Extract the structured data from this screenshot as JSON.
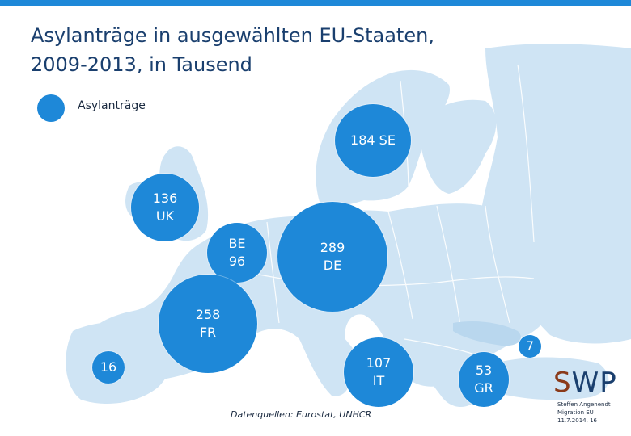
{
  "title": {
    "line1": "Asylanträge in ausgewählten EU-Staaten,",
    "line2": "2009-2013, in Tausend"
  },
  "legend": {
    "label": "Asylanträge"
  },
  "bubbles": [
    {
      "id": "se",
      "value": 184,
      "line1": "184 SE",
      "line2": ""
    },
    {
      "id": "uk",
      "value": 136,
      "line1": "136",
      "line2": "UK"
    },
    {
      "id": "be",
      "value": 96,
      "line1": "BE",
      "line2": "96"
    },
    {
      "id": "de",
      "value": 289,
      "line1": "289",
      "line2": "DE"
    },
    {
      "id": "fr",
      "value": 258,
      "line1": "258",
      "line2": "FR"
    },
    {
      "id": "es",
      "value": 16,
      "line1": "16",
      "line2": ""
    },
    {
      "id": "it",
      "value": 107,
      "line1": "107",
      "line2": "IT"
    },
    {
      "id": "bg",
      "value": 7,
      "line1": "7",
      "line2": ""
    },
    {
      "id": "gr",
      "value": 53,
      "line1": "53",
      "line2": "GR"
    }
  ],
  "source": "Datenquellen: Eurostat, UNHCR",
  "logo": {
    "s": "S",
    "wp": "WP"
  },
  "credit": {
    "line1": "Steffen Angenendt",
    "line2": "Migration EU",
    "line3": "11.7.2014, 16"
  },
  "colors": {
    "bubble": "#1e88d8",
    "land": "#c9e1f3",
    "land_dark": "#aacde8",
    "title": "#1a3f6e"
  }
}
